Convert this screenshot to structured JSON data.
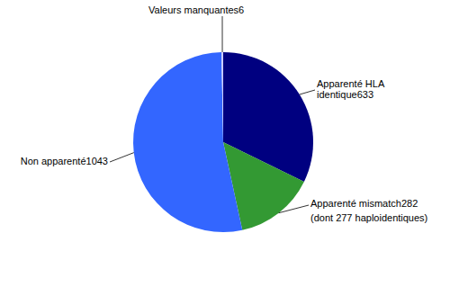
{
  "chart_data": {
    "type": "pie",
    "categories": [
      "Apparenté HLA identique",
      "Apparenté mismatch",
      "Non apparenté",
      "Valeurs manquantes"
    ],
    "values": [
      633,
      282,
      1043,
      6
    ],
    "colors": [
      "#000080",
      "#339933",
      "#3366ff",
      "#ccccff"
    ],
    "data_labels": true,
    "annotations": [
      "(dont 277 haploidentiques)"
    ]
  }
}
